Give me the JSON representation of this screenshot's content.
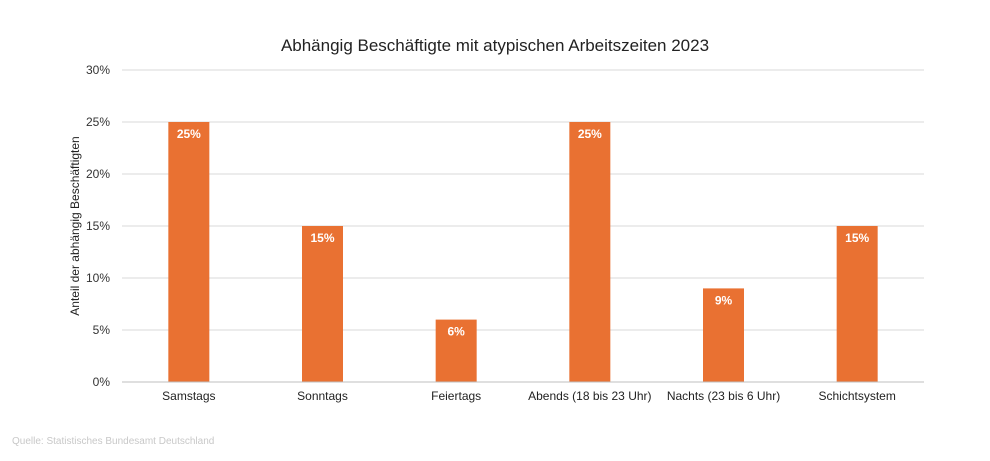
{
  "chart_data": {
    "type": "bar",
    "title": "Abhängig Beschäftigte mit atypischen Arbeitszeiten 2023",
    "xlabel": "",
    "ylabel": "Anteil der abhängig Beschäftigten",
    "categories": [
      "Samstags",
      "Sonntags",
      "Feiertags",
      "Abends (18 bis 23 Uhr)",
      "Nachts (23 bis 6 Uhr)",
      "Schichtsystem"
    ],
    "values": [
      25,
      15,
      6,
      25,
      9,
      15
    ],
    "data_labels": [
      "25%",
      "15%",
      "6%",
      "25%",
      "9%",
      "15%"
    ],
    "ylim": [
      0,
      30
    ],
    "yticks": [
      0,
      5,
      10,
      15,
      20,
      25,
      30
    ],
    "ytick_labels": [
      "0%",
      "5%",
      "10%",
      "15%",
      "20%",
      "25%",
      "30%"
    ],
    "grid": true,
    "legend": "none",
    "bar_color": "#E97132",
    "grid_color": "#D9D9D9",
    "axis_color": "#BFBFBF"
  },
  "source": "Quelle: Statistisches Bundesamt Deutschland"
}
